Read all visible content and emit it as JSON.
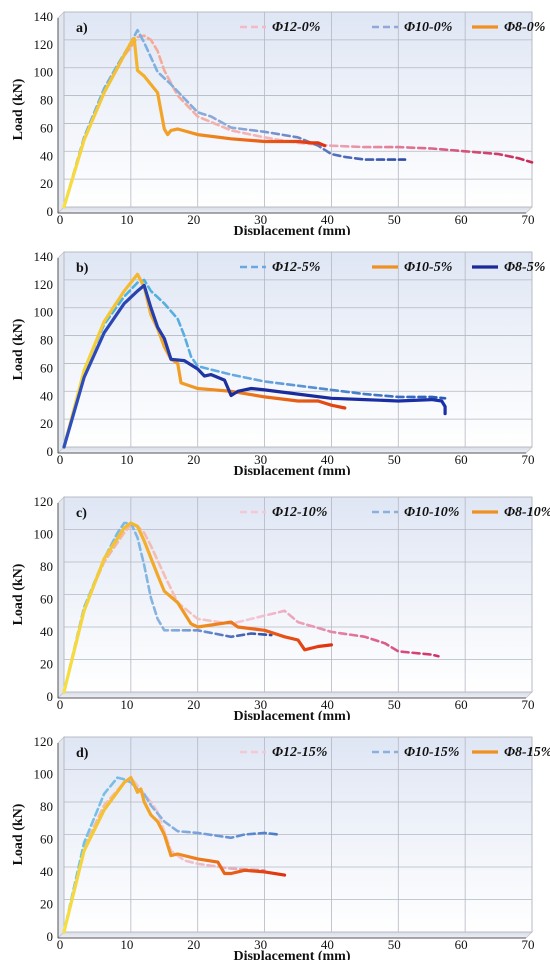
{
  "chart_data": [
    {
      "type": "line",
      "panel_label": "a)",
      "xlabel": "Displacement (mm)",
      "ylabel": "Load (kN)",
      "xlim": [
        0,
        70
      ],
      "ylim": [
        0,
        140
      ],
      "xticks": [
        0,
        10,
        20,
        30,
        40,
        50,
        60,
        70
      ],
      "yticks": [
        0,
        20,
        40,
        60,
        80,
        100,
        120,
        140
      ],
      "grid": true,
      "legend_position": "top-right",
      "series": [
        {
          "name": "Φ12-0%",
          "style": "dashed",
          "colors": [
            "#f5a07a",
            "#f5b8c4",
            "#c8285a"
          ],
          "x": [
            0,
            3,
            6,
            8,
            10,
            11,
            12,
            13,
            14,
            15,
            17,
            20,
            25,
            30,
            35,
            40,
            45,
            50,
            55,
            60,
            65,
            68,
            70
          ],
          "y": [
            0,
            50,
            85,
            102,
            115,
            122,
            123,
            120,
            112,
            98,
            80,
            65,
            55,
            50,
            46,
            44,
            43,
            43,
            42,
            40,
            38,
            35,
            32
          ]
        },
        {
          "name": "Φ10-0%",
          "style": "dashed",
          "colors": [
            "#6ab8e8",
            "#8fa8d8",
            "#2a4aa8"
          ],
          "x": [
            0,
            3,
            6,
            8,
            10,
            11,
            12,
            14,
            16,
            18,
            20,
            22,
            25,
            30,
            35,
            38,
            40,
            42,
            45,
            48,
            51
          ],
          "y": [
            0,
            50,
            85,
            102,
            118,
            127,
            118,
            97,
            88,
            78,
            68,
            65,
            57,
            54,
            50,
            44,
            38,
            36,
            34,
            34,
            34
          ]
        },
        {
          "name": "Φ8-0%",
          "style": "solid",
          "colors": [
            "#f7e040",
            "#f09020",
            "#e03010"
          ],
          "x": [
            0,
            3,
            6,
            8,
            10,
            10.5,
            11,
            12,
            14,
            15,
            15.5,
            16,
            17,
            20,
            25,
            30,
            35,
            37,
            38,
            39
          ],
          "y": [
            0,
            48,
            82,
            100,
            118,
            121,
            98,
            94,
            82,
            56,
            52,
            55,
            56,
            52,
            49,
            47,
            47,
            46,
            46,
            44
          ]
        }
      ]
    },
    {
      "type": "line",
      "panel_label": "b)",
      "xlabel": "Displacement (mm)",
      "ylabel": "Load (kN)",
      "xlim": [
        0,
        70
      ],
      "ylim": [
        0,
        140
      ],
      "xticks": [
        0,
        10,
        20,
        30,
        40,
        50,
        60,
        70
      ],
      "yticks": [
        0,
        20,
        40,
        60,
        80,
        100,
        120,
        140
      ],
      "grid": true,
      "legend_position": "top-right",
      "series": [
        {
          "name": "Φ12-5%",
          "style": "dashed",
          "colors": [
            "#3ab8e0",
            "#6aa8e0",
            "#2a5ab8"
          ],
          "x": [
            0,
            3,
            6,
            9,
            11,
            12,
            13,
            15,
            17,
            18,
            19,
            20,
            25,
            30,
            35,
            40,
            45,
            50,
            55,
            57
          ],
          "y": [
            0,
            55,
            88,
            108,
            118,
            120,
            112,
            103,
            92,
            80,
            65,
            58,
            52,
            47,
            44,
            41,
            38,
            36,
            36,
            35
          ]
        },
        {
          "name": "Φ10-5%",
          "style": "solid",
          "colors": [
            "#f7e040",
            "#f09020",
            "#e04010"
          ],
          "x": [
            0,
            3,
            6,
            9,
            11,
            12,
            13,
            14,
            15,
            16,
            17,
            17.5,
            20,
            25,
            30,
            35,
            38,
            40,
            42
          ],
          "y": [
            0,
            55,
            90,
            112,
            124,
            115,
            95,
            85,
            72,
            63,
            60,
            46,
            42,
            40,
            36,
            33,
            33,
            30,
            28
          ]
        },
        {
          "name": "Φ8-5%",
          "style": "solid",
          "colors": [
            "#3050c0",
            "#1a2a98",
            "#1a30a8"
          ],
          "x": [
            0,
            3,
            6,
            9,
            11,
            12,
            13,
            14,
            15,
            16,
            18,
            20,
            21,
            22,
            24,
            25,
            26,
            28,
            30,
            35,
            40,
            45,
            50,
            55,
            56.5,
            57,
            57
          ],
          "y": [
            0,
            50,
            82,
            103,
            112,
            116,
            100,
            86,
            78,
            63,
            62,
            56,
            51,
            52,
            48,
            37,
            40,
            42,
            41,
            38,
            35,
            34,
            33,
            34,
            33,
            29,
            24
          ]
        }
      ]
    },
    {
      "type": "line",
      "panel_label": "c)",
      "xlabel": "Displacement (mm)",
      "ylabel": "Load (kN)",
      "xlim": [
        0,
        70
      ],
      "ylim": [
        0,
        120
      ],
      "xticks": [
        0,
        10,
        20,
        30,
        40,
        50,
        60,
        70
      ],
      "yticks": [
        0,
        20,
        40,
        60,
        80,
        100,
        120
      ],
      "grid": true,
      "legend_position": "top-right",
      "series": [
        {
          "name": "Φ12-10%",
          "style": "dashed",
          "colors": [
            "#f5b090",
            "#f5c8d4",
            "#d03068"
          ],
          "x": [
            0,
            3,
            6,
            9,
            10,
            11,
            12,
            13,
            15,
            17,
            20,
            25,
            30,
            33,
            35,
            40,
            45,
            48,
            50,
            55,
            56
          ],
          "y": [
            0,
            52,
            80,
            98,
            103,
            102,
            98,
            90,
            72,
            55,
            45,
            42,
            47,
            50,
            43,
            37,
            34,
            30,
            25,
            23,
            22
          ]
        },
        {
          "name": "Φ10-10%",
          "style": "dashed",
          "colors": [
            "#6ac8e8",
            "#8ab0e0",
            "#2a4aa8"
          ],
          "x": [
            0,
            3,
            6,
            8,
            9,
            10,
            11,
            12,
            13,
            14,
            15,
            20,
            25,
            28,
            31
          ],
          "y": [
            0,
            52,
            82,
            98,
            104,
            104,
            95,
            78,
            58,
            45,
            38,
            38,
            34,
            36,
            35
          ]
        },
        {
          "name": "Φ8-10%",
          "style": "solid",
          "colors": [
            "#f7e040",
            "#f09020",
            "#e03010"
          ],
          "x": [
            0,
            3,
            6,
            9,
            10,
            11,
            12,
            14,
            15,
            17,
            19,
            20,
            25,
            26,
            30,
            33,
            35,
            36,
            38,
            40
          ],
          "y": [
            0,
            50,
            82,
            101,
            104,
            102,
            93,
            72,
            62,
            55,
            42,
            40,
            43,
            40,
            38,
            34,
            32,
            26,
            28,
            29
          ]
        }
      ]
    },
    {
      "type": "line",
      "panel_label": "d)",
      "xlabel": "Displacement (mm)",
      "ylabel": "Load (kN)",
      "xlim": [
        0,
        70
      ],
      "ylim": [
        0,
        120
      ],
      "xticks": [
        0,
        10,
        20,
        30,
        40,
        50,
        60,
        70
      ],
      "yticks": [
        0,
        20,
        40,
        60,
        80,
        100,
        120
      ],
      "grid": true,
      "legend_position": "top-right",
      "series": [
        {
          "name": "Φ12-15%",
          "style": "dashed",
          "colors": [
            "#f5b090",
            "#f5c8d4",
            "#e0a0b0"
          ],
          "x": [
            0,
            3,
            6,
            9,
            10,
            11,
            12,
            13,
            14,
            15,
            16,
            18,
            20,
            25,
            30
          ],
          "y": [
            0,
            52,
            78,
            92,
            95,
            90,
            85,
            80,
            74,
            62,
            50,
            44,
            42,
            39,
            38
          ]
        },
        {
          "name": "Φ10-15%",
          "style": "dashed",
          "colors": [
            "#6ac8e8",
            "#8ab0e0",
            "#4a7ac8"
          ],
          "x": [
            0,
            3,
            6,
            8,
            9,
            10,
            11,
            12,
            13,
            15,
            17,
            20,
            25,
            27,
            30,
            32
          ],
          "y": [
            0,
            55,
            85,
            95,
            94,
            92,
            88,
            85,
            78,
            68,
            62,
            61,
            58,
            60,
            61,
            60
          ]
        },
        {
          "name": "Φ8-15%",
          "style": "solid",
          "colors": [
            "#f7e040",
            "#f09020",
            "#e03010"
          ],
          "x": [
            0,
            3,
            6,
            9,
            10,
            11,
            11.5,
            12,
            13,
            14,
            15,
            16,
            17,
            20,
            23,
            24,
            25,
            27,
            30,
            33
          ],
          "y": [
            0,
            50,
            75,
            92,
            95,
            86,
            88,
            80,
            72,
            68,
            60,
            47,
            48,
            45,
            43,
            36,
            36,
            38,
            37,
            35
          ]
        }
      ]
    }
  ]
}
